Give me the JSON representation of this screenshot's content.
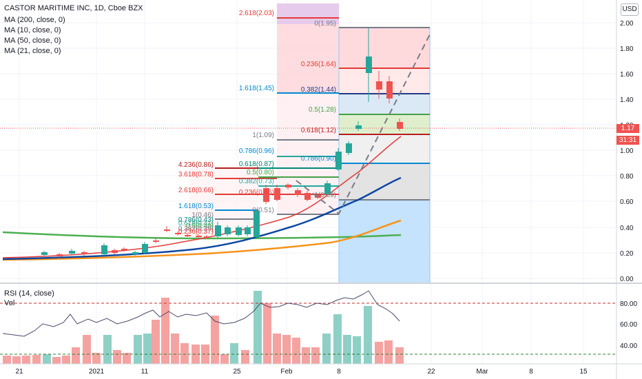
{
  "header": {
    "title": "CASTOR MARITIME INC, 1D, Cboe BZX",
    "indicators": [
      "MA (200, close, 0)",
      "MA (10, close, 0)",
      "MA (50, close, 0)",
      "MA (21, close, 0)"
    ],
    "currency_button": "USD"
  },
  "price_axis": {
    "ticks": [
      "2.00",
      "1.80",
      "1.60",
      "1.40",
      "1.20",
      "1.00",
      "0.80",
      "0.60",
      "0.40",
      "0.20",
      "0.00"
    ],
    "current_price": "1.17",
    "countdown": "31:31"
  },
  "rsi_pane": {
    "label": "RSI (14, close)",
    "volume_label": "Vol",
    "ticks": [
      "80.00",
      "60.00",
      "40.00"
    ]
  },
  "time_axis": {
    "labels": [
      "21",
      "2021",
      "11",
      "25",
      "Feb",
      "8",
      "22",
      "Mar",
      "8",
      "15"
    ]
  },
  "fib_left_lower": [
    "4.236(0.86)",
    "3.618(0.78)",
    "2.618(0.66)",
    "1.618(0.53)",
    "1(0.46)",
    "0.786(0.43)",
    "0.618(0.41)",
    "0.5(0.40)",
    "0.382(0.39)",
    "0.236(0.37)"
  ],
  "fib_left_mid": [
    "0.618(0.87)",
    "0.5(0.80)",
    "0.382(0.73)",
    "0.236(0.66)",
    "0(0.51)",
    "0.786(0.96)",
    "1(1.09)",
    "1.618(1.45)",
    "2.618(2.03)"
  ],
  "fib_right": [
    "0(1.95)",
    "0.236(1.64)",
    "0.382(1.44)",
    "0.5(1.28)",
    "0.618(1.12)",
    "0.786(0.90)",
    "1(0.59)"
  ],
  "colors": {
    "up": "#26a69a",
    "down": "#ef5350",
    "ma_green": "#4caf50",
    "ma_blue": "#0d47a1",
    "ma_orange": "#f7931a",
    "ma_red": "#e53935",
    "price_line": "#ef5350",
    "countdown_bg": "#ef5350"
  }
}
